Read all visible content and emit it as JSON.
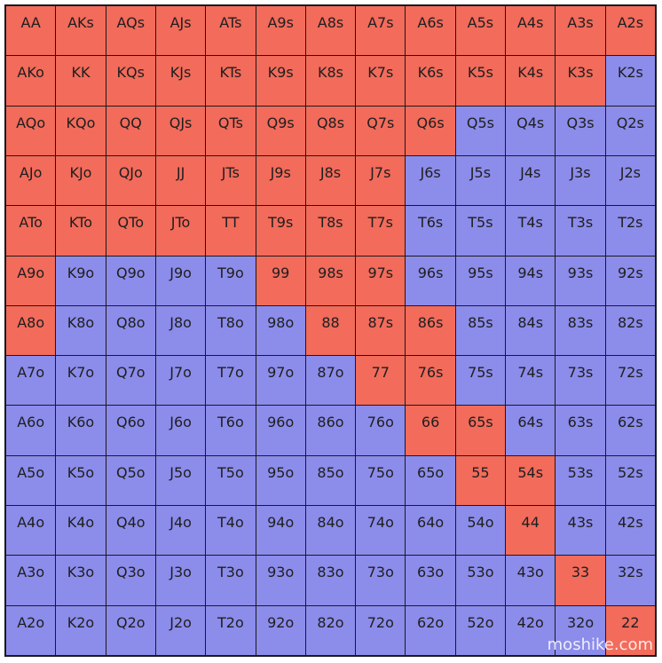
{
  "ranks": [
    "A",
    "K",
    "Q",
    "J",
    "T",
    "9",
    "8",
    "7",
    "6",
    "5",
    "4",
    "3",
    "2"
  ],
  "colors": {
    "raise": "#f26b5b",
    "fold": "#8c8ceb",
    "border": "#1a1a1a"
  },
  "grid": [
    [
      "AA",
      "AKs",
      "AQs",
      "AJs",
      "ATs",
      "A9s",
      "A8s",
      "A7s",
      "A6s",
      "A5s",
      "A4s",
      "A3s",
      "A2s"
    ],
    [
      "AKo",
      "KK",
      "KQs",
      "KJs",
      "KTs",
      "K9s",
      "K8s",
      "K7s",
      "K6s",
      "K5s",
      "K4s",
      "K3s",
      "K2s"
    ],
    [
      "AQo",
      "KQo",
      "QQ",
      "QJs",
      "QTs",
      "Q9s",
      "Q8s",
      "Q7s",
      "Q6s",
      "Q5s",
      "Q4s",
      "Q3s",
      "Q2s"
    ],
    [
      "AJo",
      "KJo",
      "QJo",
      "JJ",
      "JTs",
      "J9s",
      "J8s",
      "J7s",
      "J6s",
      "J5s",
      "J4s",
      "J3s",
      "J2s"
    ],
    [
      "ATo",
      "KTo",
      "QTo",
      "JTo",
      "TT",
      "T9s",
      "T8s",
      "T7s",
      "T6s",
      "T5s",
      "T4s",
      "T3s",
      "T2s"
    ],
    [
      "A9o",
      "K9o",
      "Q9o",
      "J9o",
      "T9o",
      "99",
      "98s",
      "97s",
      "96s",
      "95s",
      "94s",
      "93s",
      "92s"
    ],
    [
      "A8o",
      "K8o",
      "Q8o",
      "J8o",
      "T8o",
      "98o",
      "88",
      "87s",
      "86s",
      "85s",
      "84s",
      "83s",
      "82s"
    ],
    [
      "A7o",
      "K7o",
      "Q7o",
      "J7o",
      "T7o",
      "97o",
      "87o",
      "77",
      "76s",
      "75s",
      "74s",
      "73s",
      "72s"
    ],
    [
      "A6o",
      "K6o",
      "Q6o",
      "J6o",
      "T6o",
      "96o",
      "86o",
      "76o",
      "66",
      "65s",
      "64s",
      "63s",
      "62s"
    ],
    [
      "A5o",
      "K5o",
      "Q5o",
      "J5o",
      "T5o",
      "95o",
      "85o",
      "75o",
      "65o",
      "55",
      "54s",
      "53s",
      "52s"
    ],
    [
      "A4o",
      "K4o",
      "Q4o",
      "J4o",
      "T4o",
      "94o",
      "84o",
      "74o",
      "64o",
      "54o",
      "44",
      "43s",
      "42s"
    ],
    [
      "A3o",
      "K3o",
      "Q3o",
      "J3o",
      "T3o",
      "93o",
      "83o",
      "73o",
      "63o",
      "53o",
      "43o",
      "33",
      "32s"
    ],
    [
      "A2o",
      "K2o",
      "Q2o",
      "J2o",
      "T2o",
      "92o",
      "82o",
      "72o",
      "62o",
      "52o",
      "42o",
      "32o",
      "22"
    ]
  ],
  "raise_hands": [
    "AA",
    "AKs",
    "AQs",
    "AJs",
    "ATs",
    "A9s",
    "A8s",
    "A7s",
    "A6s",
    "A5s",
    "A4s",
    "A3s",
    "A2s",
    "AKo",
    "KK",
    "KQs",
    "KJs",
    "KTs",
    "K9s",
    "K8s",
    "K7s",
    "K6s",
    "K5s",
    "K4s",
    "K3s",
    "AQo",
    "KQo",
    "QQ",
    "QJs",
    "QTs",
    "Q9s",
    "Q8s",
    "Q7s",
    "Q6s",
    "AJo",
    "KJo",
    "QJo",
    "JJ",
    "JTs",
    "J9s",
    "J8s",
    "J7s",
    "ATo",
    "KTo",
    "QTo",
    "JTo",
    "TT",
    "T9s",
    "T8s",
    "T7s",
    "A9o",
    "99",
    "98s",
    "97s",
    "A8o",
    "88",
    "87s",
    "86s",
    "77",
    "76s",
    "66",
    "65s",
    "55",
    "54s",
    "44",
    "33",
    "22"
  ],
  "watermark": "moshike.com"
}
